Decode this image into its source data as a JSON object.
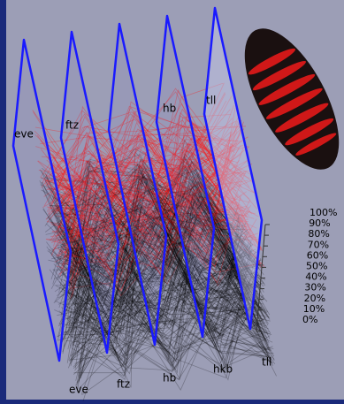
{
  "plane_labels": [
    "eve",
    "ftz",
    "hb",
    "tll"
  ],
  "axis_labels": [
    "eve",
    "ftz",
    "hb",
    "hkb",
    "tll"
  ],
  "scale_labels": [
    "100%",
    "90%",
    "80%",
    "70%",
    "60%",
    "50%",
    "40%",
    "30%",
    "20%",
    "10%",
    "0%"
  ]
}
